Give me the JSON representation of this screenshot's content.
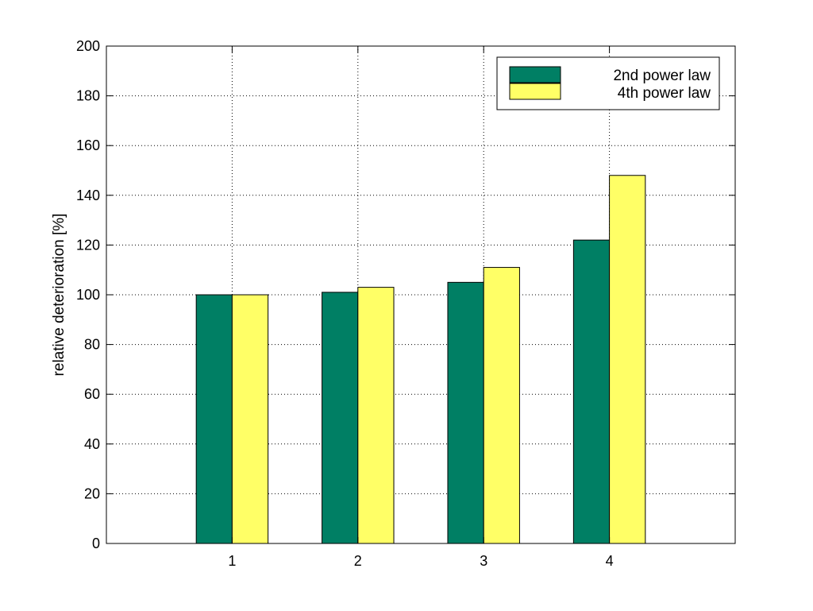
{
  "chart_data": {
    "type": "bar",
    "categories": [
      "1",
      "2",
      "3",
      "4"
    ],
    "series": [
      {
        "name": "2nd power law",
        "values": [
          100,
          101,
          105,
          122
        ],
        "color": "#007f64"
      },
      {
        "name": "4th power law",
        "values": [
          100,
          103,
          111,
          148
        ],
        "color": "#ffff66"
      }
    ],
    "title": "",
    "xlabel": "",
    "ylabel": "relative deterioration [%]",
    "xlim": [
      0,
      5
    ],
    "ylim": [
      0,
      200
    ],
    "yticks": [
      0,
      20,
      40,
      60,
      80,
      100,
      120,
      140,
      160,
      180,
      200
    ],
    "grid": true,
    "legend_position": "top-right"
  }
}
